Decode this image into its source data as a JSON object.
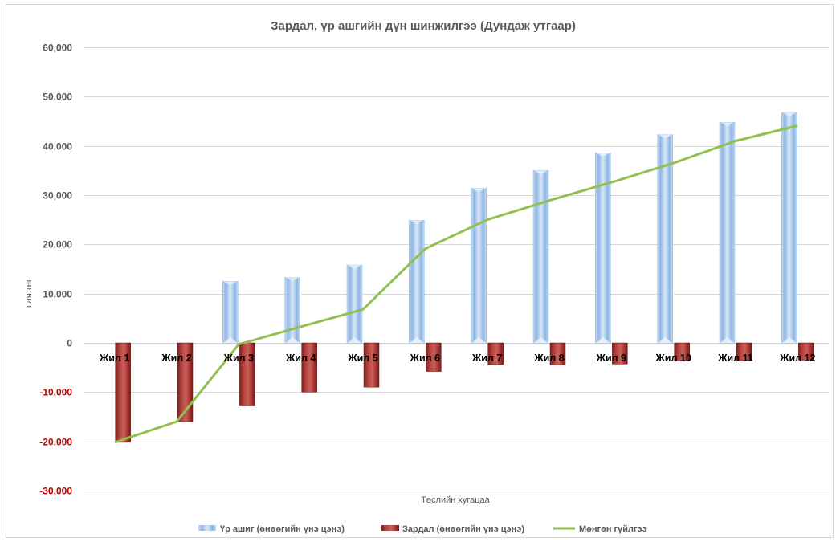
{
  "chart_data": {
    "type": "bar",
    "title": "Зардал, үр ашгийн дүн шинжилгээ (Дундаж утгаар)",
    "xlabel": "Төслийн хугацаа",
    "ylabel": "сая.төг",
    "ylim": [
      -30000,
      60000
    ],
    "yticks": [
      60000,
      50000,
      40000,
      30000,
      20000,
      10000,
      0,
      -10000,
      -20000,
      -30000
    ],
    "ytick_labels": [
      "60,000",
      "50,000",
      "40,000",
      "30,000",
      "20,000",
      "10,000",
      "0",
      "-10,000",
      "-20,000",
      "-30,000"
    ],
    "grid": true,
    "legend_position": "bottom",
    "categories": [
      "Жил 1",
      "Жил 2",
      "Жил 3",
      "Жил 4",
      "Жил 5",
      "Жил 6",
      "Жил 7",
      "Жил 8",
      "Жил 9",
      "Жил 10",
      "Жил 11",
      "Жил 12"
    ],
    "series": [
      {
        "name": "Үр ашиг (өнөөгийн үнэ цэнэ)",
        "type": "bar",
        "color": "#9dc3e6",
        "values": [
          0,
          0,
          12500,
          13300,
          15800,
          24900,
          31400,
          35000,
          38600,
          42300,
          44800,
          46800
        ]
      },
      {
        "name": "Зардал (өнөөгийн үнэ цэнэ)",
        "type": "bar",
        "color": "#a5302c",
        "values": [
          -20200,
          -16000,
          -12800,
          -10000,
          -9000,
          -5800,
          -4400,
          -4500,
          -4300,
          -3600,
          -3600,
          -3500
        ]
      },
      {
        "name": "Мөнгөн гүйлгээ",
        "type": "line",
        "color": "#92c050",
        "values": [
          -20200,
          -16000,
          -300,
          3300,
          6800,
          19100,
          25000,
          28900,
          32600,
          36500,
          41000,
          44100
        ]
      }
    ]
  }
}
